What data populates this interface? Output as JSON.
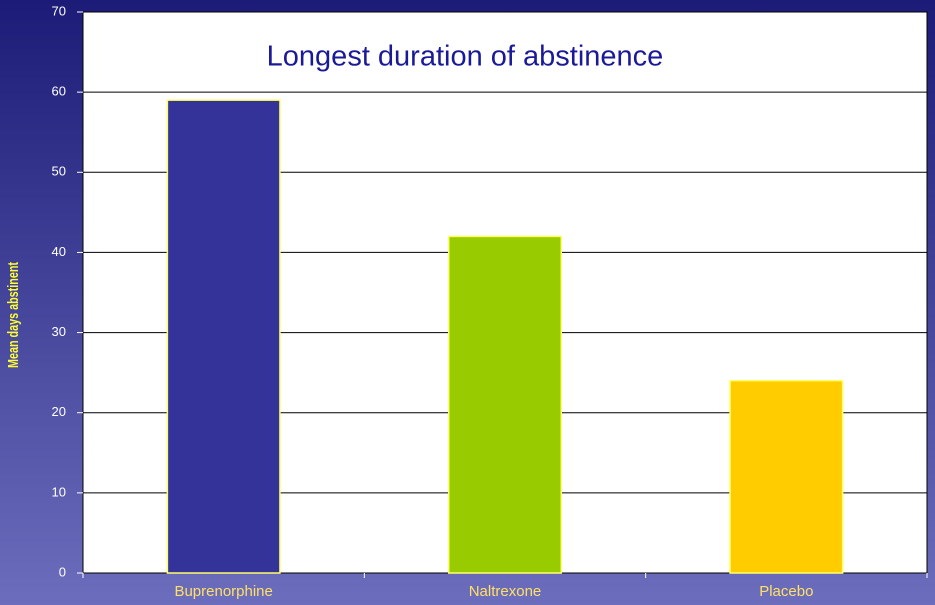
{
  "chart_data": {
    "type": "bar",
    "title": "Longest duration of abstinence",
    "ylabel": "Mean days abstinent",
    "categories": [
      "Buprenorphine",
      "Naltrexone",
      "Placebo"
    ],
    "values": [
      59,
      42,
      24
    ],
    "colors": [
      "#333399",
      "#99cc00",
      "#ffcc00"
    ],
    "ylim": [
      0,
      70
    ],
    "yticks": [
      0,
      10,
      20,
      30,
      40,
      50,
      60,
      70
    ],
    "grid": true
  }
}
